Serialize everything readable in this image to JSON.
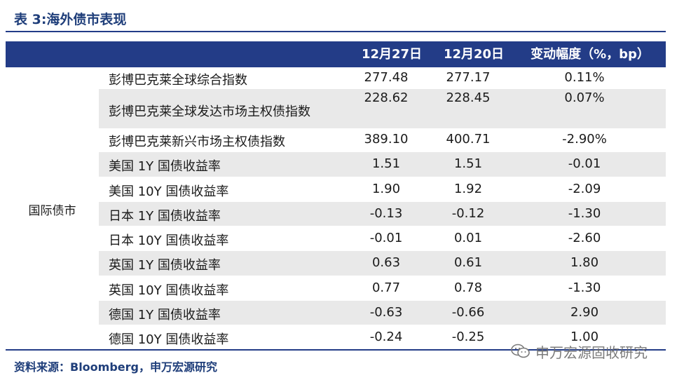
{
  "title": "表 3:海外债市表现",
  "header": {
    "col1": "12月27日",
    "col2": "12月20日",
    "col3": "变动幅度（%，bp）"
  },
  "group_label": "国际债市",
  "rows": [
    {
      "name": "彭博巴克莱全球综合指数",
      "v1": "277.48",
      "v2": "277.17",
      "chg": "0.11%"
    },
    {
      "name": "彭博巴克莱全球发达市场主权债指数",
      "v1": "228.62",
      "v2": "228.45",
      "chg": "0.07%"
    },
    {
      "name": "彭博巴克莱新兴市场主权债指数",
      "v1": "389.10",
      "v2": "400.71",
      "chg": "-2.90%"
    },
    {
      "name": "美国 1Y 国债收益率",
      "v1": "1.51",
      "v2": "1.51",
      "chg": "-0.01"
    },
    {
      "name": "美国 10Y 国债收益率",
      "v1": "1.90",
      "v2": "1.92",
      "chg": "-2.09"
    },
    {
      "name": "日本 1Y 国债收益率",
      "v1": "-0.13",
      "v2": "-0.12",
      "chg": "-1.30"
    },
    {
      "name": "日本 10Y 国债收益率",
      "v1": "-0.01",
      "v2": "0.01",
      "chg": "-2.60"
    },
    {
      "name": "英国 1Y 国债收益率",
      "v1": "0.63",
      "v2": "0.61",
      "chg": "1.80"
    },
    {
      "name": "英国 10Y 国债收益率",
      "v1": "0.77",
      "v2": "0.78",
      "chg": "-1.30"
    },
    {
      "name": "德国 1Y 国债收益率",
      "v1": "-0.63",
      "v2": "-0.66",
      "chg": "2.90"
    },
    {
      "name": "德国 10Y 国债收益率",
      "v1": "-0.24",
      "v2": "-0.25",
      "chg": "1.00"
    }
  ],
  "source": "资料来源：Bloomberg，申万宏源研究",
  "watermark": "申万宏源固收研究",
  "colors": {
    "header_bg": "#233c87",
    "row_shade": "#e9e9e9",
    "title": "#1f3e7a"
  }
}
